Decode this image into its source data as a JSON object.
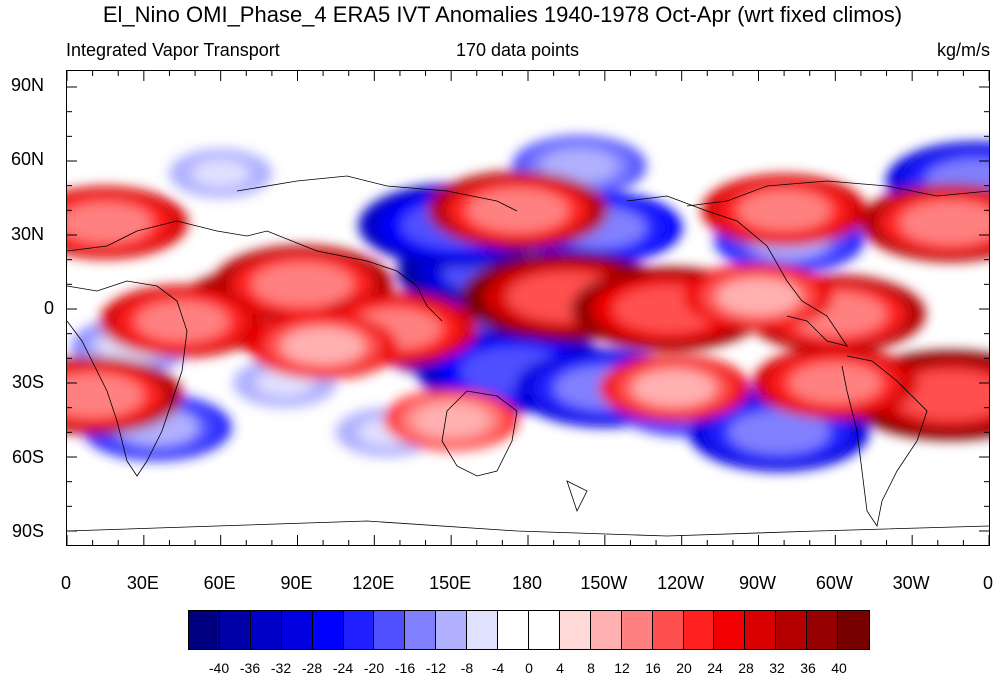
{
  "title": "El_Nino OMI_Phase_4 ERA5 IVT Anomalies 1940-1978 Oct-Apr (wrt fixed climos)",
  "subtitle_left": "Integrated Vapor Transport",
  "subtitle_center": "170 data points",
  "subtitle_right": "kg/m/s",
  "lat_labels": [
    "90N",
    "60N",
    "30N",
    "0",
    "30S",
    "60S",
    "90S"
  ],
  "lon_labels": [
    "0",
    "30E",
    "60E",
    "90E",
    "120E",
    "150E",
    "180",
    "150W",
    "120W",
    "90W",
    "60W",
    "30W",
    "0"
  ],
  "colorbar": {
    "labels": [
      "-40",
      "-36",
      "-32",
      "-28",
      "-24",
      "-20",
      "-16",
      "-12",
      "-8",
      "-4",
      "0",
      "4",
      "8",
      "12",
      "16",
      "20",
      "24",
      "28",
      "32",
      "36",
      "40"
    ],
    "colors": [
      "#000080",
      "#0000a8",
      "#0000c8",
      "#0000e0",
      "#0000ff",
      "#2020ff",
      "#5050ff",
      "#8080ff",
      "#b0b0ff",
      "#e0e0ff",
      "#ffffff",
      "#ffffff",
      "#ffd8d8",
      "#ffb0b0",
      "#ff8080",
      "#ff5050",
      "#ff2020",
      "#f00000",
      "#d80000",
      "#b40000",
      "#960000",
      "#780000"
    ]
  },
  "anomaly_features": [
    {
      "lon": 170,
      "lat": 15,
      "value": -40
    },
    {
      "lon": 152,
      "lat": 34,
      "value": -36
    },
    {
      "lon": 208,
      "lat": 33,
      "value": -28
    },
    {
      "lon": 156,
      "lat": -10,
      "value": -40
    },
    {
      "lon": 175,
      "lat": -25,
      "value": -36
    },
    {
      "lon": 210,
      "lat": -32,
      "value": -32
    },
    {
      "lon": 242,
      "lat": -38,
      "value": -24
    },
    {
      "lon": 278,
      "lat": -50,
      "value": -32
    },
    {
      "lon": 200,
      "lat": 58,
      "value": -20
    },
    {
      "lon": 355,
      "lat": 52,
      "value": -32
    },
    {
      "lon": 282,
      "lat": 28,
      "value": -24
    },
    {
      "lon": 35,
      "lat": -48,
      "value": -24
    },
    {
      "lon": 25,
      "lat": -15,
      "value": -16
    },
    {
      "lon": 85,
      "lat": -30,
      "value": -12
    },
    {
      "lon": 60,
      "lat": 55,
      "value": -12
    },
    {
      "lon": 125,
      "lat": -50,
      "value": -12
    },
    {
      "lon": 195,
      "lat": 5,
      "value": 40
    },
    {
      "lon": 235,
      "lat": 0,
      "value": 36
    },
    {
      "lon": 300,
      "lat": -2,
      "value": 32
    },
    {
      "lon": 80,
      "lat": 0,
      "value": 36
    },
    {
      "lon": 92,
      "lat": 10,
      "value": 32
    },
    {
      "lon": 45,
      "lat": -5,
      "value": 28
    },
    {
      "lon": 128,
      "lat": -8,
      "value": 28
    },
    {
      "lon": 176,
      "lat": 40,
      "value": 32
    },
    {
      "lon": 280,
      "lat": 40,
      "value": 28
    },
    {
      "lon": 345,
      "lat": 35,
      "value": 32
    },
    {
      "lon": 15,
      "lat": 35,
      "value": 28
    },
    {
      "lon": 345,
      "lat": -35,
      "value": 40
    },
    {
      "lon": 10,
      "lat": -35,
      "value": 32
    },
    {
      "lon": 300,
      "lat": -30,
      "value": 28
    },
    {
      "lon": 237,
      "lat": -32,
      "value": 24
    },
    {
      "lon": 270,
      "lat": 5,
      "value": 24
    },
    {
      "lon": 150,
      "lat": -45,
      "value": 20
    },
    {
      "lon": 100,
      "lat": -15,
      "value": 24
    }
  ]
}
